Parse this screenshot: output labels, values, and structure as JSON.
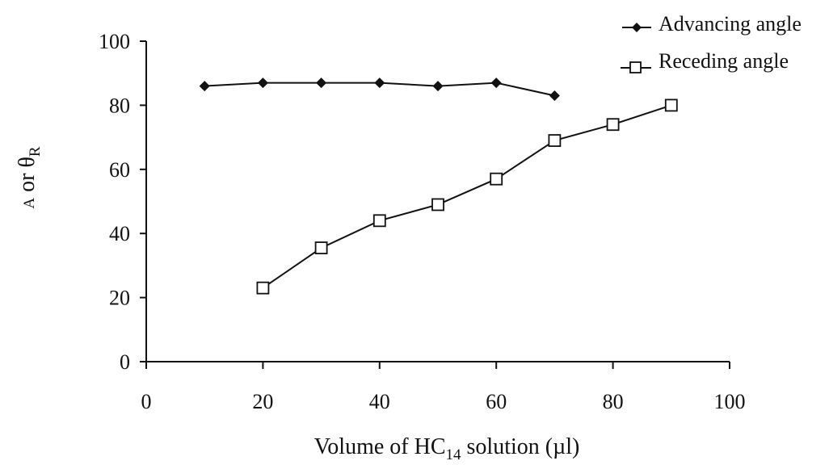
{
  "chart_data": {
    "type": "line",
    "xlabel": {
      "prefix": "Volume of HC",
      "subscript": "14",
      "suffix": " solution (µl)"
    },
    "ylabel": {
      "first": "A",
      "middle": " or θ",
      "subscript": "R"
    },
    "xlim": [
      0,
      100
    ],
    "ylim": [
      0,
      100
    ],
    "xticks": [
      "0",
      "20",
      "40",
      "60",
      "80",
      "100"
    ],
    "yticks": [
      "0",
      "20",
      "40",
      "60",
      "80",
      "100"
    ],
    "grid": false,
    "legend_position": "top-right",
    "series": [
      {
        "name": "Advancing angle",
        "marker": "filled-diamond",
        "color": "#111111",
        "x": [
          10,
          20,
          30,
          40,
          50,
          60,
          70
        ],
        "y": [
          86,
          87,
          87,
          87,
          86,
          87,
          83
        ]
      },
      {
        "name": "Receding angle",
        "marker": "open-square",
        "color": "#111111",
        "x": [
          20,
          30,
          40,
          50,
          60,
          70,
          80,
          90
        ],
        "y": [
          23,
          35.5,
          44,
          49,
          57,
          69,
          74,
          80
        ]
      }
    ]
  }
}
